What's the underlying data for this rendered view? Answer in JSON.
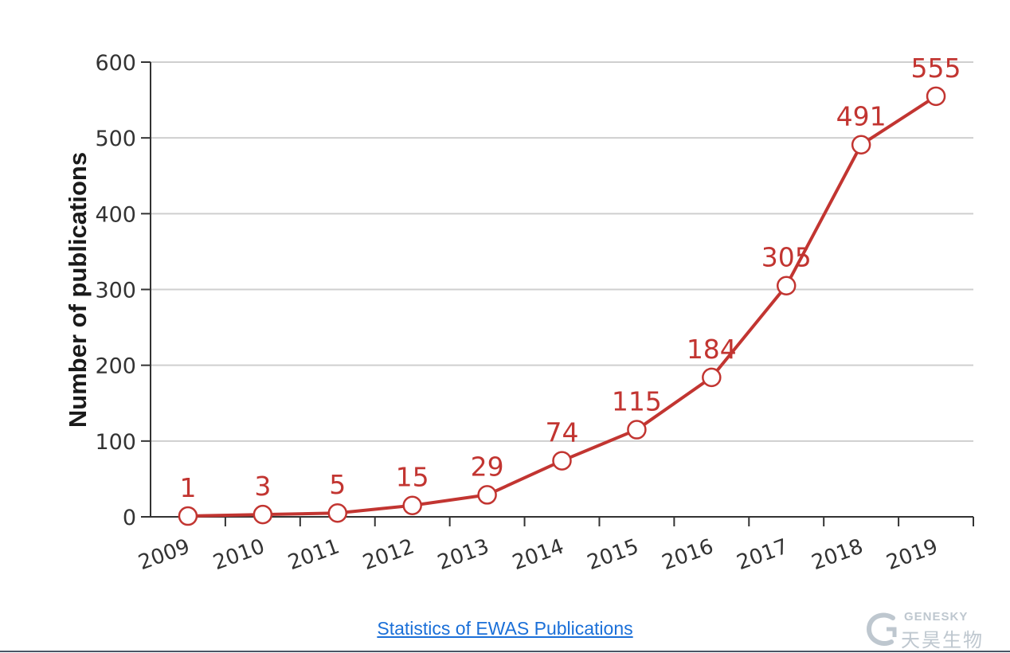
{
  "chart_data": {
    "type": "line",
    "title": "",
    "xlabel": "",
    "ylabel": "Number of publications",
    "categories": [
      "2009",
      "2010",
      "2011",
      "2012",
      "2013",
      "2014",
      "2015",
      "2016",
      "2017",
      "2018",
      "2019"
    ],
    "values": [
      1,
      3,
      5,
      15,
      29,
      74,
      115,
      184,
      305,
      491,
      555
    ],
    "ylim": [
      0,
      600
    ],
    "yticks": [
      0,
      100,
      200,
      300,
      400,
      500,
      600
    ],
    "grid": true,
    "data_labels": true,
    "line_color": "#c23531",
    "label_color": "#c23531"
  },
  "caption": {
    "link_text": "Statistics of EWAS Publications"
  },
  "watermark": {
    "brand_en": "GENESKY",
    "brand_cn": "天昊生物"
  }
}
